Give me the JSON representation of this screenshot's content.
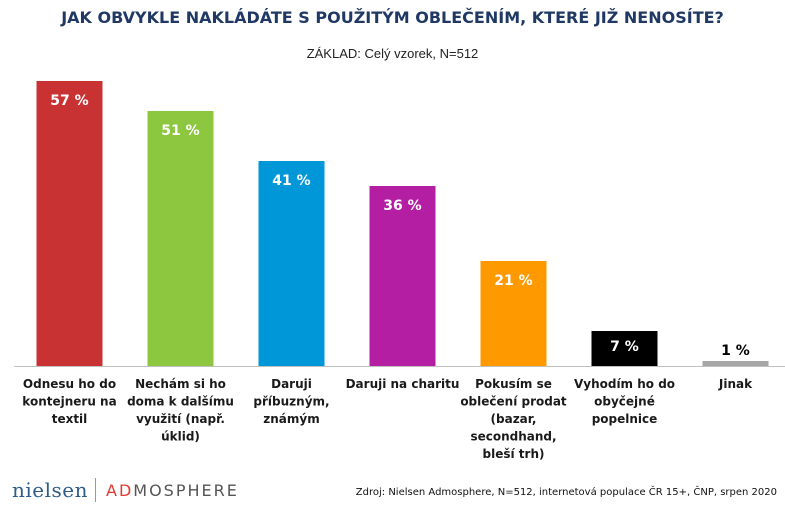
{
  "chart_data": {
    "type": "bar",
    "title": "JAK OBVYKLE NAKLÁDÁTE S POUŽITÝM OBLEČENÍM, KTERÉ JIŽ NENOSÍTE?",
    "subtitle": "ZÁKLAD: Celý vzorek, N=512",
    "ylim": [
      0,
      100
    ],
    "grid": false,
    "legend": "none",
    "value_suffix": " %",
    "bars": [
      {
        "label": [
          "Odnesu ho do",
          "kontejneru na",
          "textil"
        ],
        "value": 57,
        "color": "#c93233",
        "label_color": "#ffffff"
      },
      {
        "label": [
          "Nechám si ho",
          "doma k dalšímu",
          "využití (např.",
          "úklid)"
        ],
        "value": 51,
        "color": "#8dc63f",
        "label_color": "#ffffff"
      },
      {
        "label": [
          "Daruji",
          "příbuzným,",
          "známým"
        ],
        "value": 41,
        "color": "#0097d8",
        "label_color": "#ffffff"
      },
      {
        "label": [
          "Daruji na charitu"
        ],
        "value": 36,
        "color": "#b31ea3",
        "label_color": "#ffffff"
      },
      {
        "label": [
          "Pokusím se",
          "oblečení prodat",
          "(bazar,",
          "secondhand,",
          "bleší trh)"
        ],
        "value": 21,
        "color": "#ff9900",
        "label_color": "#ffffff"
      },
      {
        "label": [
          "Vyhodím ho do",
          "obyčejné",
          "popelnice"
        ],
        "value": 7,
        "color": "#000000",
        "label_color": "#ffffff"
      },
      {
        "label": [
          "Jinak"
        ],
        "value": 1,
        "color": "#a6a6a6",
        "label_color": "#000000"
      }
    ]
  },
  "footer": {
    "logo_nielsen": "nielsen",
    "logo_ad": "AD",
    "logo_mosphere": "MOSPHERE",
    "source": "Zdroj: Nielsen Admosphere, N=512, internetová populace ČR 15+, ČNP, srpen 2020"
  }
}
